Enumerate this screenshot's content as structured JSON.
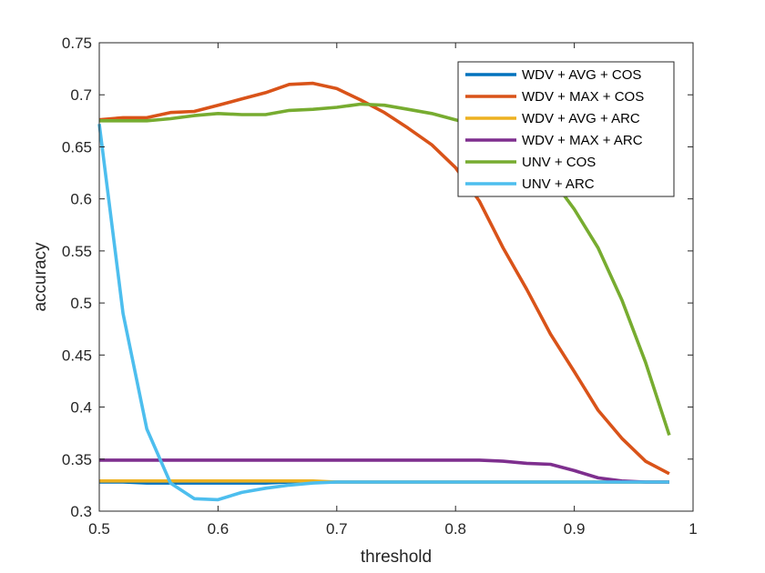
{
  "chart_data": {
    "type": "line",
    "xlabel": "threshold",
    "ylabel": "accuracy",
    "xlim": [
      0.5,
      1
    ],
    "ylim": [
      0.3,
      0.75
    ],
    "xticks": [
      "0.5",
      "0.6",
      "0.7",
      "0.8",
      "0.9",
      "1"
    ],
    "yticks": [
      "0.3",
      "0.35",
      "0.4",
      "0.45",
      "0.5",
      "0.55",
      "0.6",
      "0.65",
      "0.7",
      "0.75"
    ],
    "grid": false,
    "legend_position": "top-right",
    "x": [
      0.5,
      0.52,
      0.54,
      0.56,
      0.58,
      0.6,
      0.62,
      0.64,
      0.66,
      0.68,
      0.7,
      0.72,
      0.74,
      0.76,
      0.78,
      0.8,
      0.82,
      0.84,
      0.86,
      0.88,
      0.9,
      0.92,
      0.94,
      0.96,
      0.98
    ],
    "series": [
      {
        "name": "WDV + AVG + COS",
        "color": "#0072BD",
        "values": [
          0.328,
          0.328,
          0.327,
          0.327,
          0.327,
          0.327,
          0.327,
          0.327,
          0.328,
          0.328,
          0.328,
          0.328,
          0.328,
          0.328,
          0.328,
          0.328,
          0.328,
          0.328,
          0.328,
          0.328,
          0.328,
          0.328,
          0.328,
          0.328,
          0.328
        ]
      },
      {
        "name": "WDV + MAX + COS",
        "color": "#D95319",
        "values": [
          0.676,
          0.678,
          0.678,
          0.683,
          0.684,
          0.69,
          0.696,
          0.702,
          0.71,
          0.711,
          0.706,
          0.695,
          0.683,
          0.668,
          0.652,
          0.63,
          0.598,
          0.553,
          0.513,
          0.47,
          0.434,
          0.397,
          0.37,
          0.348,
          0.336
        ]
      },
      {
        "name": "WDV + AVG + ARC",
        "color": "#EDB120",
        "values": [
          0.329,
          0.329,
          0.329,
          0.329,
          0.329,
          0.329,
          0.329,
          0.329,
          0.329,
          0.329,
          0.328,
          0.328,
          0.328,
          0.328,
          0.328,
          0.328,
          0.328,
          0.328,
          0.328,
          0.328,
          0.328,
          0.328,
          0.328,
          0.328,
          0.328
        ]
      },
      {
        "name": "WDV + MAX + ARC",
        "color": "#7E2F8E",
        "values": [
          0.349,
          0.349,
          0.349,
          0.349,
          0.349,
          0.349,
          0.349,
          0.349,
          0.349,
          0.349,
          0.349,
          0.349,
          0.349,
          0.349,
          0.349,
          0.349,
          0.349,
          0.348,
          0.346,
          0.345,
          0.339,
          0.332,
          0.329,
          0.328,
          0.328
        ]
      },
      {
        "name": "UNV + COS",
        "color": "#77AC30",
        "values": [
          0.675,
          0.675,
          0.675,
          0.677,
          0.68,
          0.682,
          0.681,
          0.681,
          0.685,
          0.686,
          0.688,
          0.691,
          0.69,
          0.686,
          0.682,
          0.676,
          0.669,
          0.66,
          0.647,
          0.621,
          0.59,
          0.553,
          0.503,
          0.443,
          0.373
        ]
      },
      {
        "name": "UNV + ARC",
        "color": "#4DBEEE",
        "values": [
          0.672,
          0.49,
          0.379,
          0.327,
          0.312,
          0.311,
          0.318,
          0.322,
          0.325,
          0.327,
          0.328,
          0.328,
          0.328,
          0.328,
          0.328,
          0.328,
          0.328,
          0.328,
          0.328,
          0.328,
          0.328,
          0.328,
          0.328,
          0.328,
          0.328
        ]
      }
    ]
  }
}
